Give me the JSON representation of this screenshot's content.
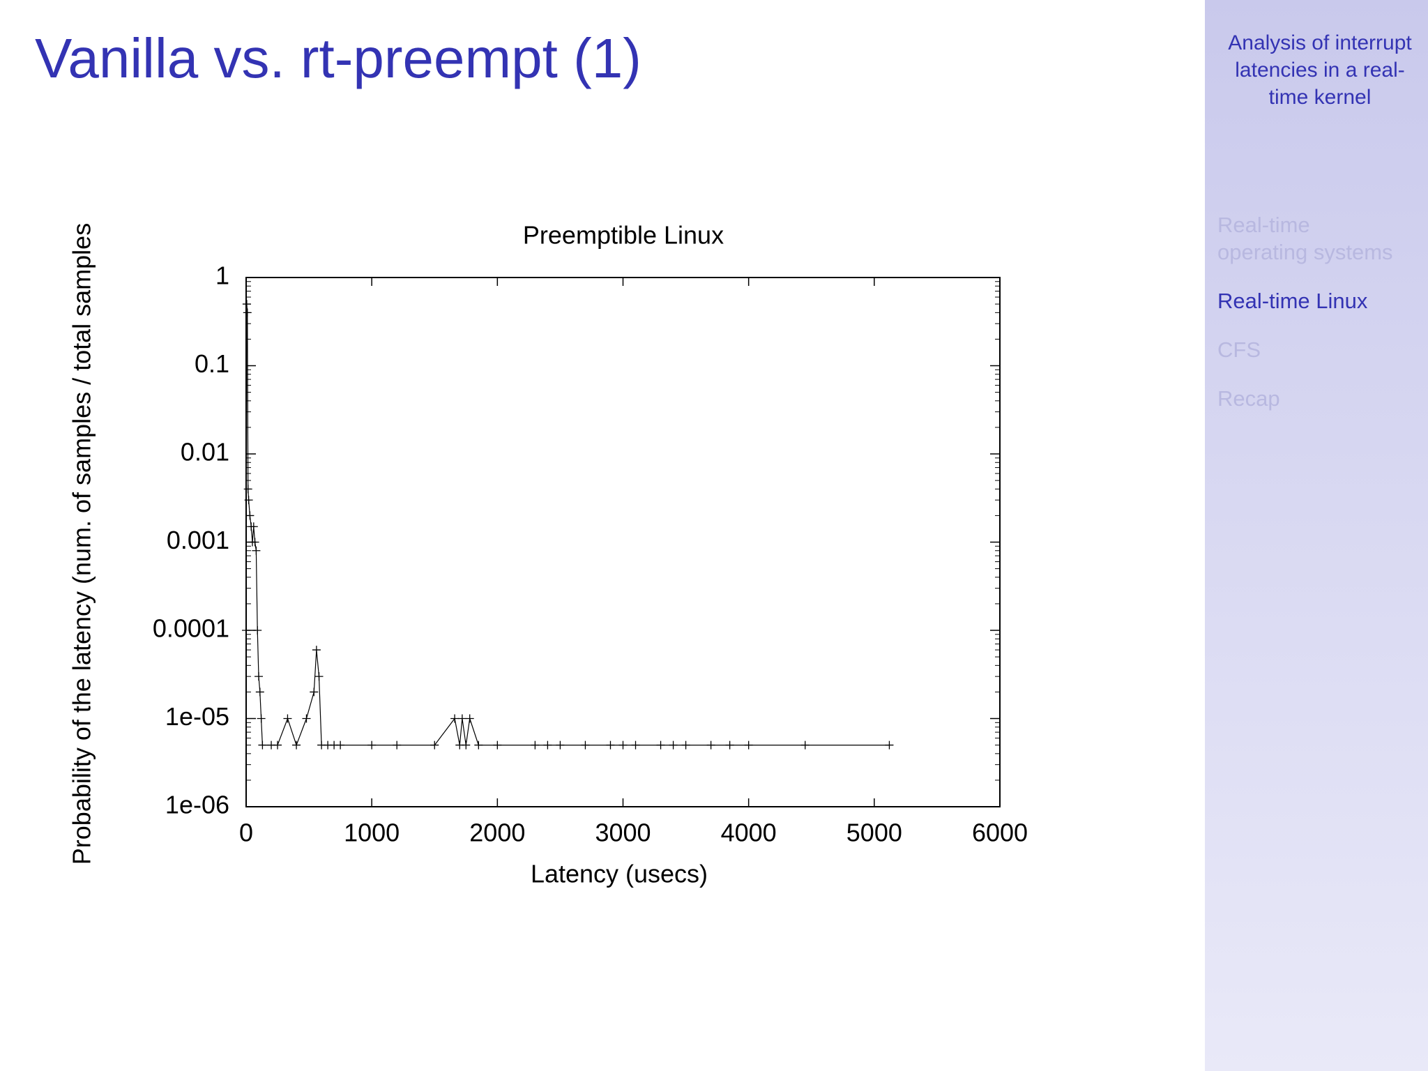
{
  "slide": {
    "title": "Vanilla vs. rt-preempt (1)"
  },
  "sidebar": {
    "title": "Analysis of interrupt latencies in a real-time kernel",
    "sections": [
      {
        "lines": [
          "Real-time",
          "operating systems"
        ],
        "active": false
      },
      {
        "lines": [
          "Real-time Linux"
        ],
        "active": true
      },
      {
        "lines": [
          "CFS"
        ],
        "active": false
      },
      {
        "lines": [
          "Recap"
        ],
        "active": false
      }
    ]
  },
  "chart_data": {
    "type": "line",
    "title": "Preemptible Linux",
    "x_label": "Latency (usecs)",
    "y_label": "Probability of the latency (num. of samples / total samples",
    "log_y": true,
    "grid": false,
    "xlim": [
      0,
      6000
    ],
    "xticks": [
      0,
      1000,
      2000,
      3000,
      4000,
      5000,
      6000
    ],
    "ylim": [
      1e-06,
      1
    ],
    "yticks": [
      1,
      0.1,
      0.01,
      0.001,
      0.0001,
      {
        "value": 1e-05,
        "label": "1e-05"
      },
      {
        "value": 1e-06,
        "label": "1e-06"
      }
    ],
    "series": [
      {
        "color": "#000000",
        "x": [
          0,
          5,
          10,
          15,
          20,
          30,
          40,
          50,
          60,
          70,
          80,
          90,
          100,
          110,
          120,
          130,
          200,
          250,
          330,
          400,
          480,
          540,
          560,
          580,
          600,
          650,
          700,
          750,
          1000,
          1200,
          1500,
          1660,
          1700,
          1720,
          1750,
          1780,
          1850,
          2000,
          2300,
          2400,
          2500,
          2700,
          2900,
          3000,
          3100,
          3300,
          3400,
          3500,
          3700,
          3850,
          4000,
          4450,
          5120
        ],
        "values": [
          0.0001,
          0.5,
          0.4,
          0.004,
          0.003,
          0.002,
          0.0015,
          0.001,
          0.0015,
          0.001,
          0.0008,
          0.0001,
          3e-05,
          2e-05,
          1e-05,
          5e-06,
          5e-06,
          5e-06,
          1e-05,
          5e-06,
          1e-05,
          2e-05,
          6e-05,
          3e-05,
          5e-06,
          5e-06,
          5e-06,
          5e-06,
          5e-06,
          5e-06,
          5e-06,
          1e-05,
          5e-06,
          1e-05,
          5e-06,
          1e-05,
          5e-06,
          5e-06,
          5e-06,
          5e-06,
          5e-06,
          5e-06,
          5e-06,
          5e-06,
          5e-06,
          5e-06,
          5e-06,
          5e-06,
          5e-06,
          5e-06,
          5e-06,
          5e-06,
          5e-06
        ]
      }
    ]
  }
}
